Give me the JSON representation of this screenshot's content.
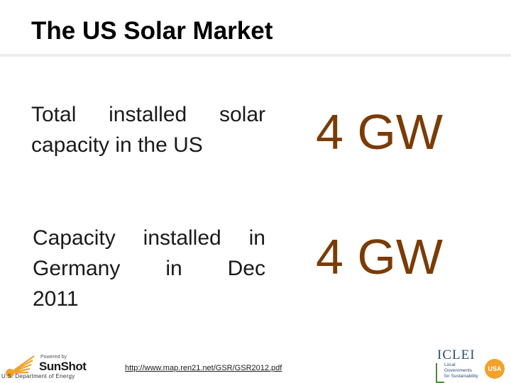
{
  "slide": {
    "title": "The US Solar Market"
  },
  "rows": [
    {
      "label": "Total  installed  solar capacity in the US",
      "value": "4 GW"
    },
    {
      "label_lines": [
        "Capacity installed in",
        "Germany  in  Dec",
        "2011"
      ],
      "value": "4 GW"
    }
  ],
  "footer": {
    "source_url": "http://www.map.ren21.net/GSR/GSR2012.pdf",
    "sunshot": {
      "tagline": "Powered by",
      "brand": "SunShot",
      "agency": "U.S. Department of Energy"
    },
    "iclei": {
      "name": "ICLEI",
      "line1": "Local",
      "line2": "Governments",
      "line3": "for Sustainability",
      "badge": "USA"
    }
  },
  "colors": {
    "value_text": "#7b3b06",
    "iclei_blue": "#2a4d7a",
    "iclei_green": "#4f8a3c",
    "sunshot_orange": "#f2a22a"
  }
}
